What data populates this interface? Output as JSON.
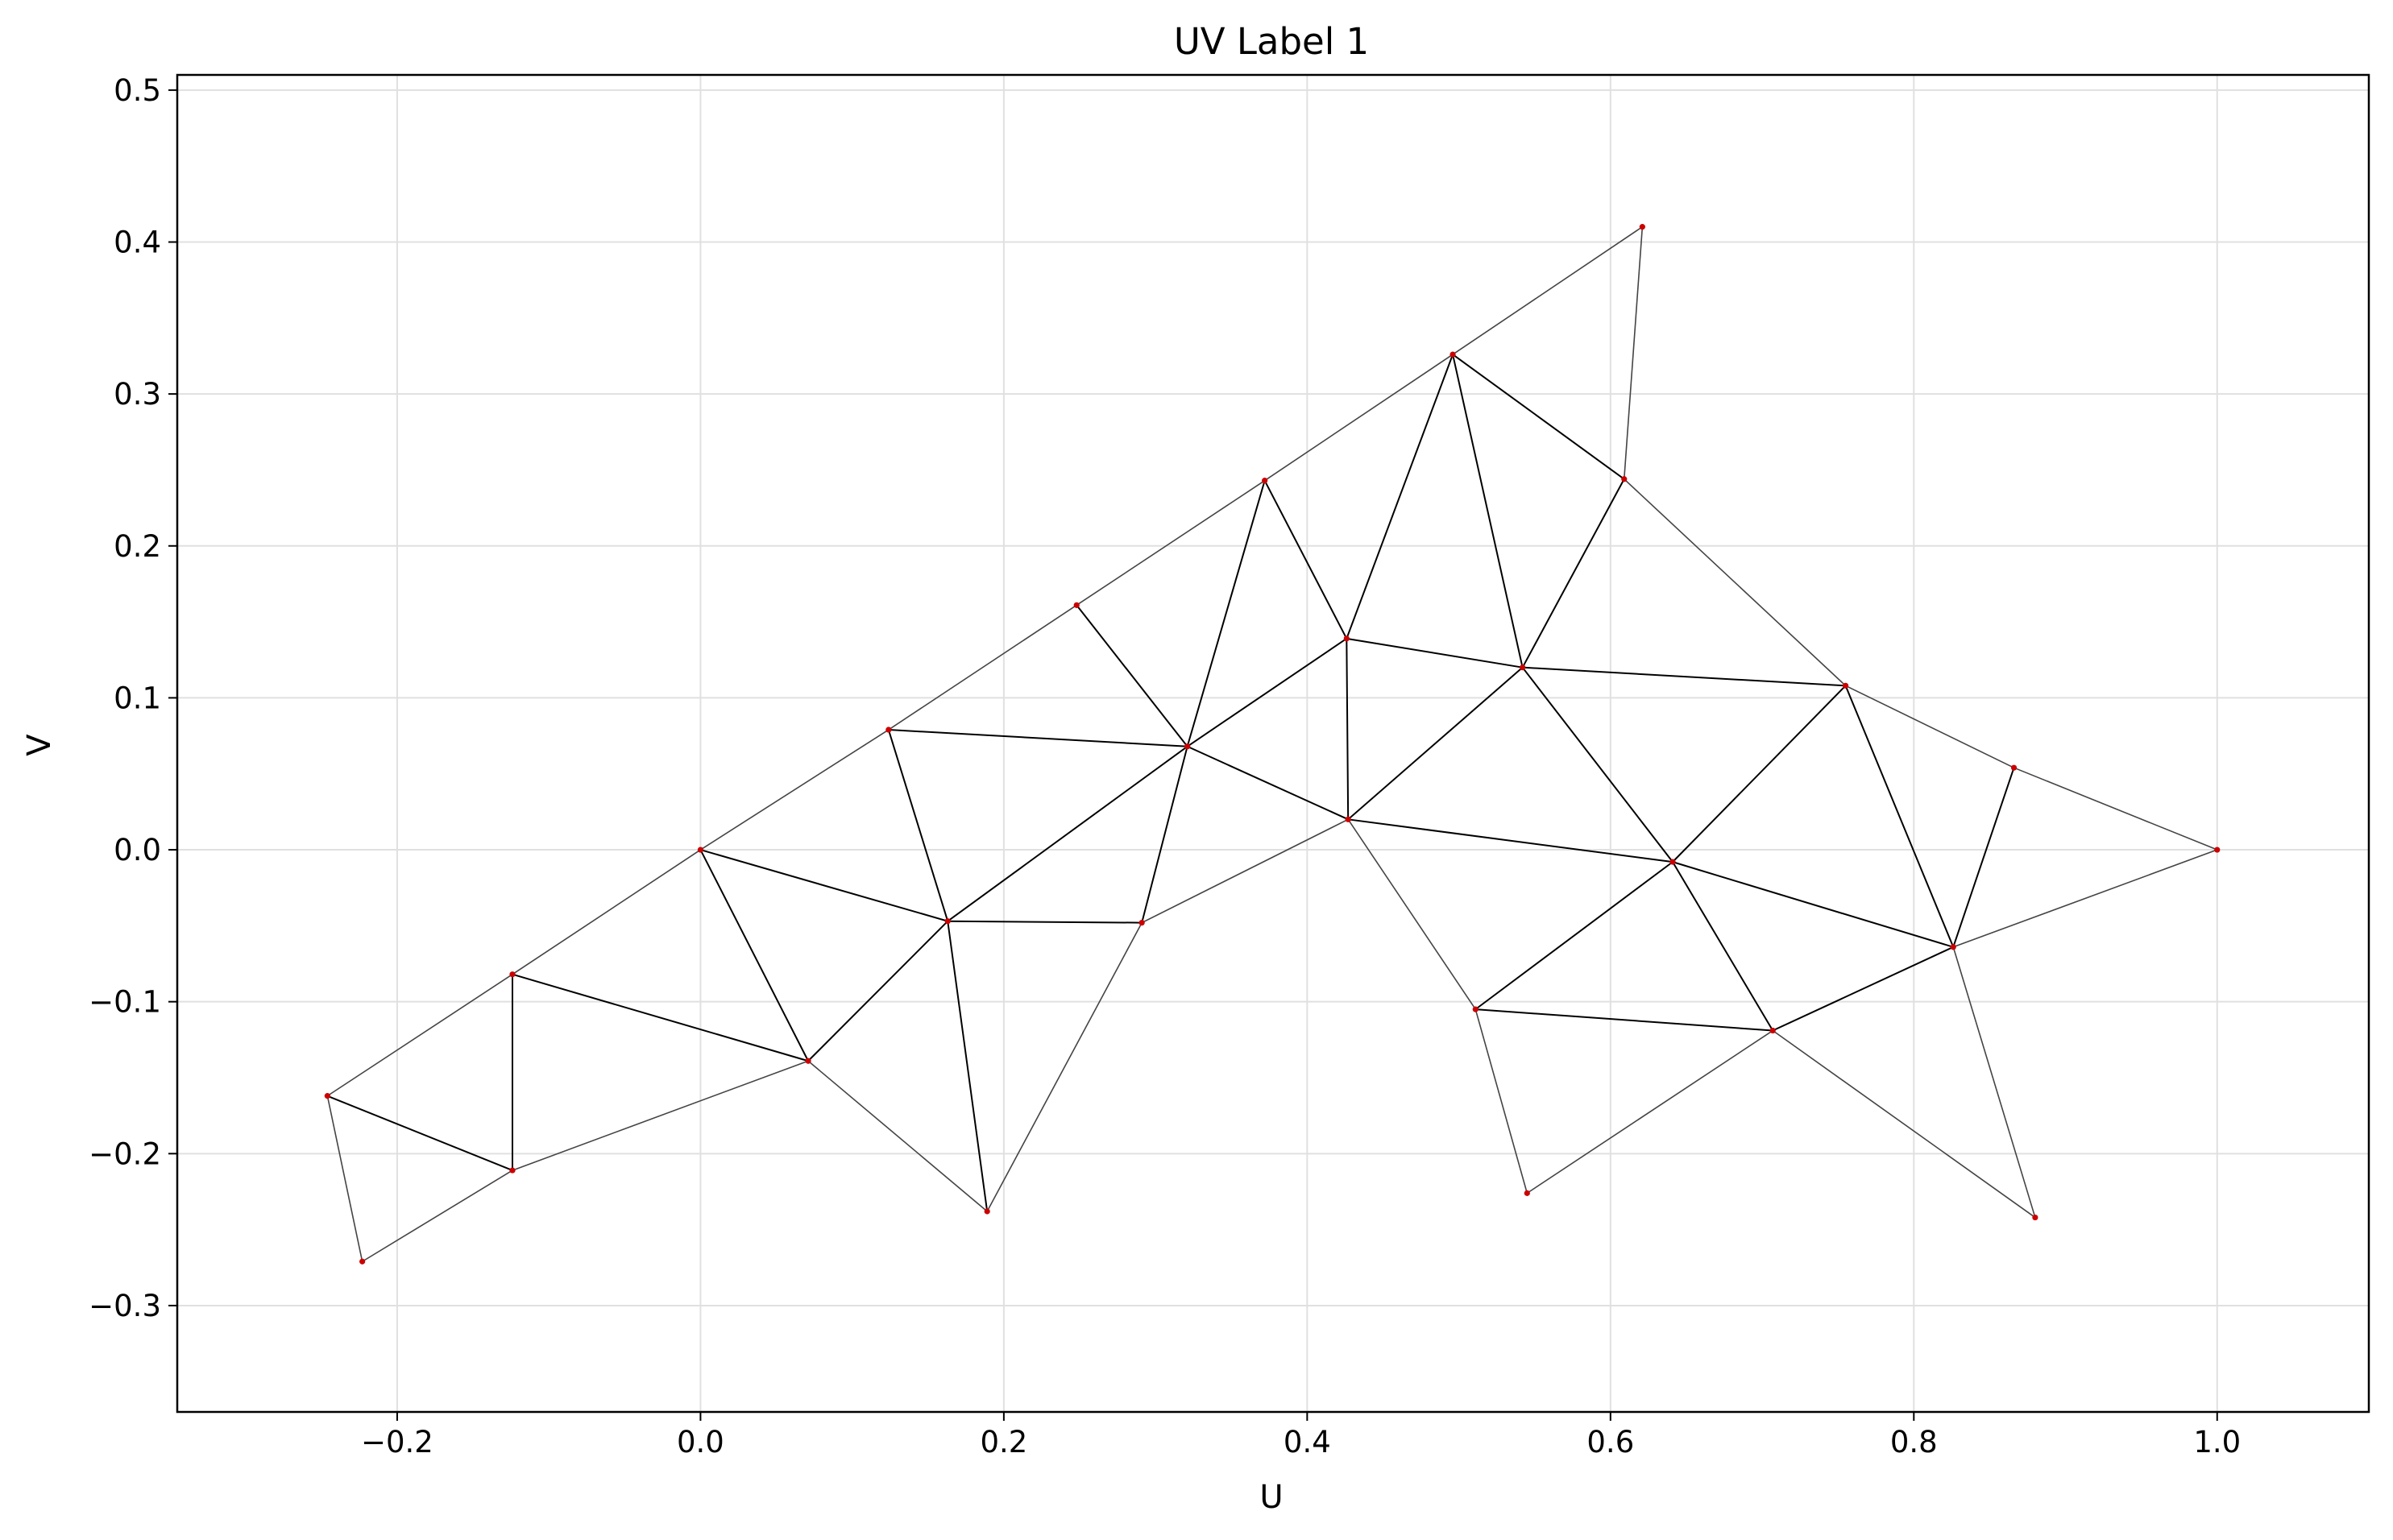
{
  "chart_data": {
    "type": "scatter",
    "title": "UV Label 1",
    "xlabel": "U",
    "ylabel": "V",
    "xlim": [
      -0.345,
      1.1
    ],
    "ylim": [
      -0.37,
      0.51
    ],
    "grid": true,
    "x_ticks": [
      -0.2,
      0.0,
      0.2,
      0.4,
      0.6,
      0.8,
      1.0
    ],
    "x_tick_labels": [
      "−0.2",
      "0.0",
      "0.2",
      "0.4",
      "0.6",
      "0.8",
      "1.0"
    ],
    "y_ticks": [
      -0.3,
      -0.2,
      -0.1,
      0.0,
      0.1,
      0.2,
      0.3,
      0.4,
      0.5
    ],
    "y_tick_labels": [
      "−0.3",
      "−0.2",
      "−0.1",
      "0.0",
      "0.1",
      "0.2",
      "0.3",
      "0.4",
      "0.5"
    ],
    "colors": {
      "vertex": "#cc0000",
      "interior_edge": "#000000",
      "boundary_edge": "#444444",
      "grid": "#e0e0e0"
    },
    "vertices": [
      {
        "u": -0.246,
        "v": -0.162
      },
      {
        "u": -0.124,
        "v": -0.082
      },
      {
        "u": 0.0,
        "v": 0.0
      },
      {
        "u": 0.124,
        "v": 0.079
      },
      {
        "u": 0.248,
        "v": 0.161
      },
      {
        "u": 0.372,
        "v": 0.243
      },
      {
        "u": 0.496,
        "v": 0.326
      },
      {
        "u": 0.621,
        "v": 0.41
      },
      {
        "u": 0.609,
        "v": 0.244
      },
      {
        "u": 0.755,
        "v": 0.108
      },
      {
        "u": 0.866,
        "v": 0.054
      },
      {
        "u": 1.0,
        "v": 0.0
      },
      {
        "u": 0.826,
        "v": -0.064
      },
      {
        "u": 0.88,
        "v": -0.242
      },
      {
        "u": 0.707,
        "v": -0.119
      },
      {
        "u": 0.545,
        "v": -0.226
      },
      {
        "u": 0.511,
        "v": -0.105
      },
      {
        "u": 0.427,
        "v": 0.02
      },
      {
        "u": 0.291,
        "v": -0.048
      },
      {
        "u": 0.189,
        "v": -0.238
      },
      {
        "u": 0.071,
        "v": -0.139
      },
      {
        "u": -0.124,
        "v": -0.211
      },
      {
        "u": -0.223,
        "v": -0.271
      },
      {
        "u": 0.163,
        "v": -0.047
      },
      {
        "u": 0.321,
        "v": 0.068
      },
      {
        "u": 0.426,
        "v": 0.139
      },
      {
        "u": 0.542,
        "v": 0.12
      },
      {
        "u": 0.641,
        "v": -0.008
      }
    ],
    "boundary_edges": [
      [
        0,
        1
      ],
      [
        1,
        2
      ],
      [
        2,
        3
      ],
      [
        3,
        4
      ],
      [
        4,
        5
      ],
      [
        5,
        6
      ],
      [
        6,
        7
      ],
      [
        7,
        8
      ],
      [
        8,
        9
      ],
      [
        9,
        10
      ],
      [
        10,
        11
      ],
      [
        11,
        12
      ],
      [
        12,
        13
      ],
      [
        13,
        14
      ],
      [
        14,
        15
      ],
      [
        15,
        16
      ],
      [
        16,
        17
      ],
      [
        17,
        18
      ],
      [
        18,
        19
      ],
      [
        19,
        20
      ],
      [
        20,
        21
      ],
      [
        21,
        22
      ],
      [
        22,
        0
      ]
    ],
    "interior_edges": [
      [
        0,
        21
      ],
      [
        1,
        21
      ],
      [
        1,
        20
      ],
      [
        2,
        20
      ],
      [
        2,
        23
      ],
      [
        3,
        23
      ],
      [
        3,
        24
      ],
      [
        4,
        24
      ],
      [
        5,
        24
      ],
      [
        5,
        25
      ],
      [
        6,
        25
      ],
      [
        6,
        26
      ],
      [
        6,
        8
      ],
      [
        8,
        26
      ],
      [
        9,
        26
      ],
      [
        9,
        27
      ],
      [
        9,
        12
      ],
      [
        10,
        12
      ],
      [
        12,
        27
      ],
      [
        12,
        14
      ],
      [
        14,
        27
      ],
      [
        14,
        16
      ],
      [
        16,
        27
      ],
      [
        26,
        27
      ],
      [
        17,
        27
      ],
      [
        17,
        26
      ],
      [
        17,
        25
      ],
      [
        17,
        24
      ],
      [
        24,
        25
      ],
      [
        25,
        26
      ],
      [
        18,
        24
      ],
      [
        18,
        23
      ],
      [
        19,
        23
      ],
      [
        20,
        23
      ],
      [
        23,
        24
      ]
    ]
  }
}
